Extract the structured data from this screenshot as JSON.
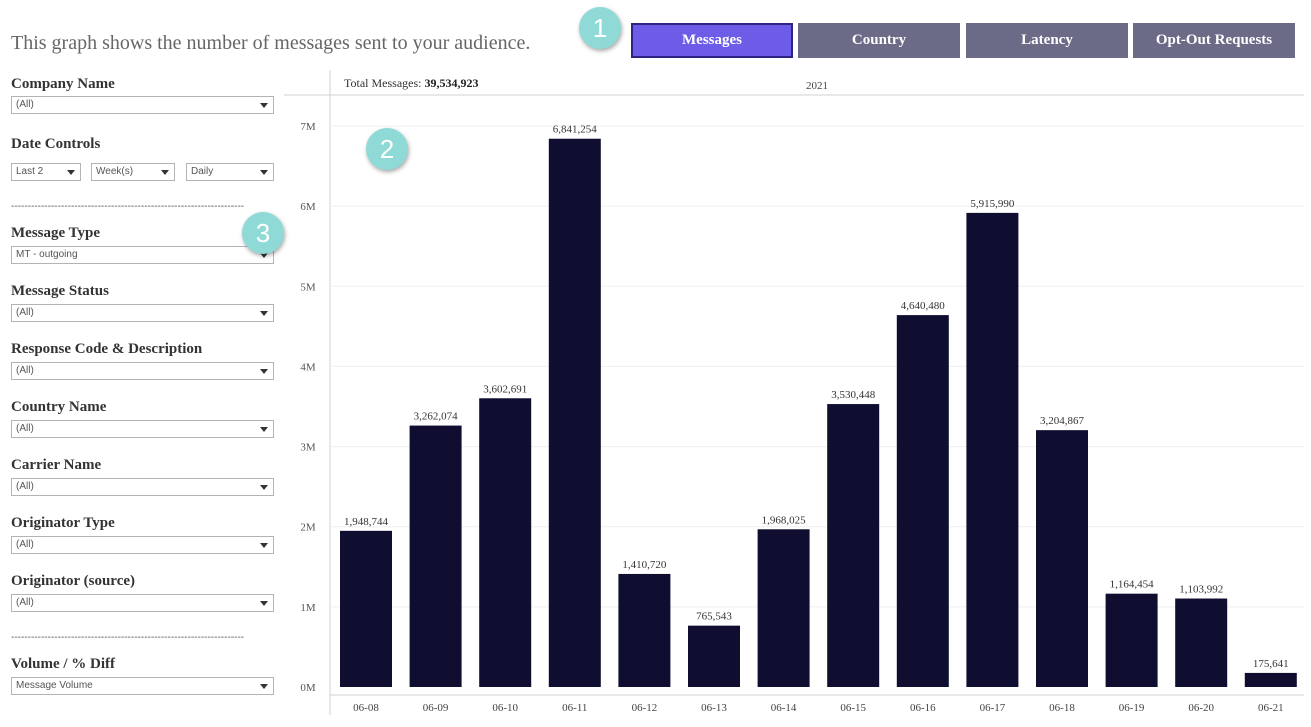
{
  "intro_text": "This graph shows the number of messages sent to your audience.",
  "tabs": [
    {
      "label": "Messages",
      "active": true
    },
    {
      "label": "Country",
      "active": false
    },
    {
      "label": "Latency",
      "active": false
    },
    {
      "label": "Opt-Out Requests",
      "active": false
    }
  ],
  "badges": [
    "1",
    "2",
    "3"
  ],
  "sidebar": {
    "company": {
      "label": "Company Name",
      "value": "(All)"
    },
    "date_controls": {
      "label": "Date Controls",
      "range": "Last 2",
      "unit": "Week(s)",
      "granularity": "Daily"
    },
    "divider": "----------------------------------------------------------------------",
    "message_type": {
      "label": "Message Type",
      "value": "MT - outgoing"
    },
    "message_status": {
      "label": "Message Status",
      "value": "(All)"
    },
    "response_code": {
      "label": "Response Code & Description",
      "value": "(All)"
    },
    "country_name": {
      "label": "Country Name",
      "value": "(All)"
    },
    "carrier_name": {
      "label": "Carrier Name",
      "value": "(All)"
    },
    "originator_type": {
      "label": "Originator Type",
      "value": "(All)"
    },
    "originator_source": {
      "label": "Originator (source)",
      "value": "(All)"
    },
    "volume_diff": {
      "label": "Volume / % Diff",
      "value": "Message Volume"
    }
  },
  "chart_header": {
    "total_label": "Total Messages:",
    "total_value": "39,534,923",
    "year": "2021"
  },
  "colors": {
    "bar": "#0f0e30",
    "tab": "#6b6b87",
    "tab_active": "#6c5ce7",
    "badge": "#8fdad6"
  },
  "chart_data": {
    "type": "bar",
    "categories": [
      "06-08",
      "06-09",
      "06-10",
      "06-11",
      "06-12",
      "06-13",
      "06-14",
      "06-15",
      "06-16",
      "06-17",
      "06-18",
      "06-19",
      "06-20",
      "06-21"
    ],
    "values": [
      1948744,
      3262074,
      3602691,
      6841254,
      1410720,
      765543,
      1968025,
      3530448,
      4640480,
      5915990,
      3204867,
      1164454,
      1103992,
      175641
    ],
    "value_labels": [
      "1,948,744",
      "3,262,074",
      "3,602,691",
      "6,841,254",
      "1,410,720",
      "765,543",
      "1,968,025",
      "3,530,448",
      "4,640,480",
      "5,915,990",
      "3,204,867",
      "1,164,454",
      "1,103,992",
      "175,641"
    ],
    "yticks": [
      "0M",
      "1M",
      "2M",
      "3M",
      "4M",
      "5M",
      "6M",
      "7M"
    ],
    "ylim": [
      0,
      7000000
    ],
    "grid": true
  }
}
